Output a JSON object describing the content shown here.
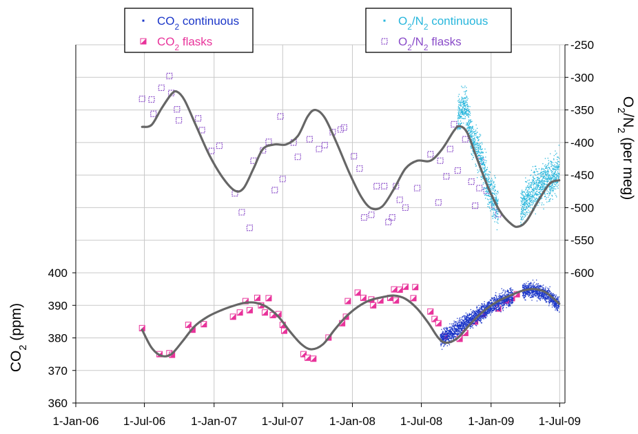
{
  "chart_data": {
    "type": "scatter",
    "x_axis": {
      "type": "date",
      "range": [
        "2006-01-01",
        "2009-07-15"
      ],
      "tick_dates": [
        "2006-01-01",
        "2006-07-01",
        "2007-01-01",
        "2007-07-01",
        "2008-01-01",
        "2008-07-01",
        "2009-01-01",
        "2009-07-01"
      ],
      "tick_labels": [
        "1-Jan-06",
        "1-Jul-06",
        "1-Jan-07",
        "1-Jul-07",
        "1-Jan-08",
        "1-Jul-08",
        "1-Jan-09",
        "1-Jul-09"
      ]
    },
    "y_left": {
      "title_main": "CO",
      "title_sub": "2",
      "title_rest": " (ppm)",
      "range": [
        360,
        400
      ],
      "ticks": [
        360,
        370,
        380,
        390,
        400
      ],
      "tick_labels": [
        "360",
        "370",
        "380",
        "390",
        "400"
      ]
    },
    "y_right": {
      "title_main": "O",
      "title_sub": "2",
      "title_mid": "/N",
      "title_sub2": "2",
      "title_rest": " (per meg)",
      "range": [
        -600,
        -250
      ],
      "ticks": [
        -600,
        -550,
        -500,
        -450,
        -400,
        -350,
        -300,
        -250
      ],
      "tick_labels": [
        "-600",
        "-550",
        "-500",
        "-450",
        "-400",
        "-350",
        "-300",
        "-250"
      ]
    },
    "legend_left": {
      "placement": "top-left",
      "items": [
        {
          "main": "CO",
          "sub": "2",
          "rest": " continuous",
          "color": "#1a35c8",
          "marker": "dot"
        },
        {
          "main": "CO",
          "sub": "2",
          "rest": " flasks",
          "color": "#e8339a",
          "marker": "half-square"
        }
      ]
    },
    "legend_right": {
      "placement": "top-right",
      "items": [
        {
          "main": "O",
          "sub": "2",
          "mid": "/N",
          "sub2": "2",
          "rest": " continuous",
          "color": "#27b6dc",
          "marker": "dot"
        },
        {
          "main": "O",
          "sub": "2",
          "mid": "/N",
          "sub2": "2",
          "rest": " flasks",
          "color": "#8a4cc9",
          "marker": "open-square"
        }
      ]
    },
    "series": [
      {
        "name": "CO2 flasks",
        "axis": "left",
        "color": "#e8339a",
        "marker": "half-square",
        "points": [
          [
            "2006-06-25",
            383
          ],
          [
            "2006-08-10",
            375
          ],
          [
            "2006-09-05",
            375.3
          ],
          [
            "2006-09-12",
            374.8
          ],
          [
            "2006-10-25",
            384
          ],
          [
            "2006-11-05",
            382.5
          ],
          [
            "2006-12-05",
            384.2
          ],
          [
            "2007-02-20",
            386.5
          ],
          [
            "2007-03-10",
            387.8
          ],
          [
            "2007-03-25",
            391.3
          ],
          [
            "2007-04-05",
            388.5
          ],
          [
            "2007-04-25",
            392.3
          ],
          [
            "2007-05-05",
            390
          ],
          [
            "2007-05-15",
            387.8
          ],
          [
            "2007-05-25",
            392.2
          ],
          [
            "2007-06-05",
            387
          ],
          [
            "2007-06-20",
            387.3
          ],
          [
            "2007-07-01",
            384
          ],
          [
            "2007-07-05",
            382.2
          ],
          [
            "2007-08-25",
            375
          ],
          [
            "2007-09-05",
            373.9
          ],
          [
            "2007-09-20",
            373.6
          ],
          [
            "2007-10-30",
            380.1
          ],
          [
            "2007-12-05",
            384.5
          ],
          [
            "2007-12-15",
            386.5
          ],
          [
            "2007-12-20",
            391.3
          ],
          [
            "2008-01-15",
            393.9
          ],
          [
            "2008-01-30",
            392.3
          ],
          [
            "2008-02-20",
            391.8
          ],
          [
            "2008-02-25",
            390
          ],
          [
            "2008-03-15",
            391.5
          ],
          [
            "2008-04-10",
            392.3
          ],
          [
            "2008-04-20",
            394.9
          ],
          [
            "2008-04-25",
            391.5
          ],
          [
            "2008-05-05",
            394.8
          ],
          [
            "2008-05-20",
            395.7
          ],
          [
            "2008-06-10",
            392.2
          ],
          [
            "2008-06-15",
            395.6
          ],
          [
            "2008-07-25",
            388.1
          ],
          [
            "2008-08-05",
            385.8
          ],
          [
            "2008-08-15",
            384.5
          ],
          [
            "2008-09-01",
            380.5
          ],
          [
            "2008-10-10",
            379.7
          ],
          [
            "2008-10-25",
            381.5
          ],
          [
            "2008-11-20",
            385
          ],
          [
            "2008-12-10",
            387.3
          ],
          [
            "2009-01-20",
            389
          ],
          [
            "2009-02-10",
            391.4
          ],
          [
            "2009-02-25",
            392.2
          ],
          [
            "2009-03-10",
            393.4
          ]
        ]
      },
      {
        "name": "O2/N2 flasks",
        "axis": "right",
        "color": "#8a4cc9",
        "marker": "open-square",
        "points": [
          [
            "2006-06-25",
            -333
          ],
          [
            "2006-07-20",
            -334
          ],
          [
            "2006-07-25",
            -356
          ],
          [
            "2006-08-15",
            -316
          ],
          [
            "2006-09-05",
            -298
          ],
          [
            "2006-09-10",
            -324
          ],
          [
            "2006-09-25",
            -349
          ],
          [
            "2006-09-30",
            -366
          ],
          [
            "2006-11-20",
            -363
          ],
          [
            "2006-11-30",
            -381
          ],
          [
            "2006-12-25",
            -413
          ],
          [
            "2007-01-15",
            -405
          ],
          [
            "2007-02-25",
            -478
          ],
          [
            "2007-03-15",
            -507
          ],
          [
            "2007-04-05",
            -531
          ],
          [
            "2007-04-15",
            -428
          ],
          [
            "2007-05-10",
            -412
          ],
          [
            "2007-05-25",
            -399
          ],
          [
            "2007-06-10",
            -473
          ],
          [
            "2007-06-25",
            -360
          ],
          [
            "2007-07-01",
            -456
          ],
          [
            "2007-07-30",
            -400
          ],
          [
            "2007-08-10",
            -422
          ],
          [
            "2007-09-10",
            -395
          ],
          [
            "2007-10-05",
            -410
          ],
          [
            "2007-10-20",
            -404
          ],
          [
            "2007-11-10",
            -384
          ],
          [
            "2007-12-01",
            -380
          ],
          [
            "2007-12-10",
            -377
          ],
          [
            "2008-01-05",
            -421
          ],
          [
            "2008-01-20",
            -440
          ],
          [
            "2008-02-01",
            -515
          ],
          [
            "2008-02-20",
            -511
          ],
          [
            "2008-03-05",
            -467
          ],
          [
            "2008-03-25",
            -467
          ],
          [
            "2008-04-05",
            -522
          ],
          [
            "2008-04-15",
            -515
          ],
          [
            "2008-04-25",
            -467
          ],
          [
            "2008-05-05",
            -488
          ],
          [
            "2008-05-20",
            -500
          ],
          [
            "2008-06-20",
            -470
          ],
          [
            "2008-07-25",
            -418
          ],
          [
            "2008-08-15",
            -492
          ],
          [
            "2008-08-20",
            -428
          ],
          [
            "2008-09-05",
            -452
          ],
          [
            "2008-09-15",
            -410
          ],
          [
            "2008-09-25",
            -372
          ],
          [
            "2008-10-05",
            -443
          ],
          [
            "2008-12-01",
            -470
          ],
          [
            "2008-12-20",
            -474
          ],
          [
            "2009-01-10",
            -498
          ],
          [
            "2009-01-20",
            -510
          ],
          [
            "2008-12-05",
            -428
          ],
          [
            "2008-11-20",
            -497
          ],
          [
            "2008-11-10",
            -460
          ],
          [
            "2008-10-25",
            -395
          ]
        ]
      },
      {
        "name": "CO2 continuous",
        "axis": "left",
        "color": "#1a35c8",
        "marker": "dot",
        "segments": [
          {
            "start": "2008-08-20",
            "end": "2009-02-28",
            "trend": [
              [
                0.0,
                379.5
              ],
              [
                0.15,
                381.5
              ],
              [
                0.35,
                384.5
              ],
              [
                0.55,
                387.5
              ],
              [
                0.75,
                390.5
              ],
              [
                1.0,
                393
              ]
            ],
            "scatter": 2.5
          },
          {
            "start": "2009-03-25",
            "end": "2009-06-30",
            "trend": [
              [
                0.0,
                394.5
              ],
              [
                0.4,
                394.5
              ],
              [
                0.7,
                393
              ],
              [
                1.0,
                390
              ]
            ],
            "scatter": 2.3
          }
        ]
      },
      {
        "name": "O2/N2 continuous",
        "axis": "right",
        "color": "#27b6dc",
        "marker": "dot",
        "segments": [
          {
            "start": "2008-10-05",
            "end": "2009-01-20",
            "trend": [
              [
                0.0,
                -360
              ],
              [
                0.2,
                -340
              ],
              [
                0.35,
                -395
              ],
              [
                0.55,
                -420
              ],
              [
                0.75,
                -470
              ],
              [
                1.0,
                -500
              ]
            ],
            "scatter": 28
          },
          {
            "start": "2009-03-20",
            "end": "2009-06-30",
            "trend": [
              [
                0.0,
                -500
              ],
              [
                0.3,
                -475
              ],
              [
                0.6,
                -460
              ],
              [
                1.0,
                -445
              ]
            ],
            "scatter": 30
          }
        ]
      }
    ],
    "fit_curves": [
      {
        "axis": "left",
        "color": "#666666",
        "points": [
          [
            "2006-06-25",
            382.5
          ],
          [
            "2006-07-20",
            377
          ],
          [
            "2006-08-15",
            374.5
          ],
          [
            "2006-09-10",
            375
          ],
          [
            "2006-10-10",
            379
          ],
          [
            "2006-11-10",
            383.5
          ],
          [
            "2006-12-15",
            386.5
          ],
          [
            "2007-01-20",
            388.5
          ],
          [
            "2007-02-25",
            390
          ],
          [
            "2007-03-25",
            390.8
          ],
          [
            "2007-04-20",
            390.8
          ],
          [
            "2007-05-20",
            389.5
          ],
          [
            "2007-06-20",
            386.5
          ],
          [
            "2007-07-20",
            382
          ],
          [
            "2007-08-20",
            378
          ],
          [
            "2007-09-15",
            376.5
          ],
          [
            "2007-10-15",
            378
          ],
          [
            "2007-11-15",
            382.5
          ],
          [
            "2007-12-15",
            386.5
          ],
          [
            "2008-01-15",
            389.5
          ],
          [
            "2008-02-15",
            391.5
          ],
          [
            "2008-03-20",
            392.5
          ],
          [
            "2008-04-20",
            393
          ],
          [
            "2008-05-20",
            392
          ],
          [
            "2008-06-20",
            389
          ],
          [
            "2008-07-20",
            384.5
          ],
          [
            "2008-08-15",
            380
          ],
          [
            "2008-09-05",
            378.5
          ],
          [
            "2008-10-05",
            380
          ],
          [
            "2008-11-05",
            384
          ],
          [
            "2008-12-10",
            388
          ],
          [
            "2009-01-15",
            391
          ],
          [
            "2009-02-20",
            393
          ],
          [
            "2009-03-25",
            394.5
          ],
          [
            "2009-04-25",
            395
          ],
          [
            "2009-05-25",
            394
          ],
          [
            "2009-06-30",
            390.5
          ]
        ]
      },
      {
        "axis": "right",
        "color": "#666666",
        "points": [
          [
            "2006-06-25",
            -376
          ],
          [
            "2006-07-20",
            -373
          ],
          [
            "2006-08-15",
            -348
          ],
          [
            "2006-09-10",
            -326
          ],
          [
            "2006-09-25",
            -322
          ],
          [
            "2006-10-15",
            -335
          ],
          [
            "2006-11-15",
            -375
          ],
          [
            "2006-12-20",
            -420
          ],
          [
            "2007-01-25",
            -455
          ],
          [
            "2007-02-25",
            -474
          ],
          [
            "2007-03-20",
            -470
          ],
          [
            "2007-04-15",
            -440
          ],
          [
            "2007-05-10",
            -410
          ],
          [
            "2007-06-10",
            -403
          ],
          [
            "2007-07-10",
            -403
          ],
          [
            "2007-08-10",
            -390
          ],
          [
            "2007-09-05",
            -360
          ],
          [
            "2007-09-25",
            -350
          ],
          [
            "2007-10-20",
            -362
          ],
          [
            "2007-11-20",
            -400
          ],
          [
            "2007-12-25",
            -448
          ],
          [
            "2008-01-25",
            -484
          ],
          [
            "2008-02-20",
            -501
          ],
          [
            "2008-03-20",
            -498
          ],
          [
            "2008-04-20",
            -471
          ],
          [
            "2008-05-20",
            -440
          ],
          [
            "2008-06-20",
            -428
          ],
          [
            "2008-07-25",
            -428
          ],
          [
            "2008-08-25",
            -410
          ],
          [
            "2008-09-25",
            -382
          ],
          [
            "2008-10-10",
            -375
          ],
          [
            "2008-10-30",
            -385
          ],
          [
            "2008-11-25",
            -425
          ],
          [
            "2008-12-25",
            -470
          ],
          [
            "2009-01-25",
            -506
          ],
          [
            "2009-02-25",
            -526
          ],
          [
            "2009-03-15",
            -529
          ],
          [
            "2009-04-05",
            -520
          ],
          [
            "2009-05-05",
            -490
          ],
          [
            "2009-06-05",
            -463
          ],
          [
            "2009-06-30",
            -458
          ]
        ]
      }
    ]
  }
}
